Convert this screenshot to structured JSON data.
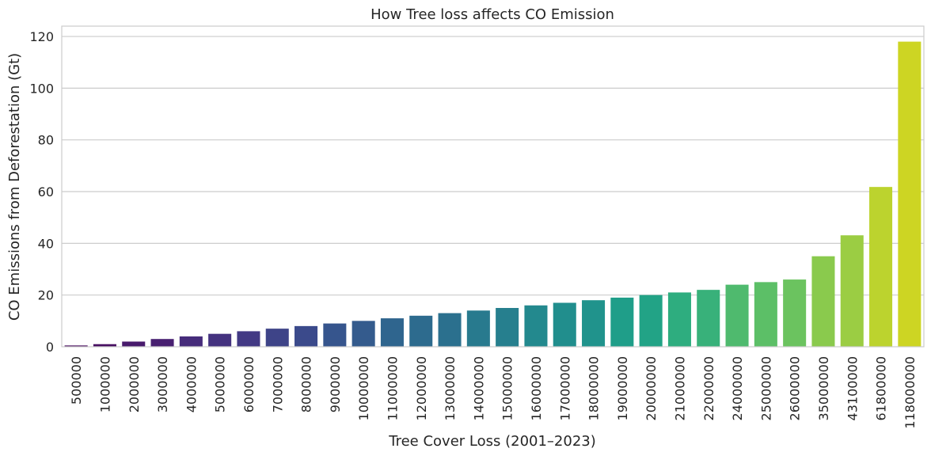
{
  "chart_data": {
    "type": "bar",
    "title": "How Tree loss affects CO\u0002 Emission",
    "xlabel": "Tree Cover Loss (2001–2023)",
    "ylabel": "CO\u0002 Emissions from Deforestation (Gt)",
    "ylim": [
      0,
      124
    ],
    "yticks": [
      0,
      20,
      40,
      60,
      80,
      100,
      120
    ],
    "grid": "horizontal",
    "palette": "viridis",
    "colors": [
      "#46085c",
      "#470e61",
      "#471365",
      "#481a6c",
      "#482071",
      "#472777",
      "#462c7b",
      "#44327f",
      "#423984",
      "#403e86",
      "#3e4488",
      "#3b4a8b",
      "#38508c",
      "#36558d",
      "#345b8d",
      "#31608e",
      "#2f658e",
      "#2d6b8e",
      "#2b708e",
      "#2a758e",
      "#287a8e",
      "#267f8e",
      "#25848d",
      "#23898e",
      "#218e8d",
      "#20938c",
      "#1f988b",
      "#1f9e89",
      "#22a386",
      "#27a884",
      "#2ead7f",
      "#38b17a",
      "#42b675",
      "#4fba6e",
      "#5cbf67",
      "#6bc35f",
      "#7ac656",
      "#8aca4d",
      "#9bcd43",
      "#aad038",
      "#bcd32e",
      "#cdd523"
    ],
    "categories": [
      "500000",
      "1000000",
      "2000000",
      "3000000",
      "4000000",
      "5000000",
      "6000000",
      "7000000",
      "8000000",
      "9000000",
      "10000000",
      "11000000",
      "12000000",
      "13000000",
      "14000000",
      "15000000",
      "16000000",
      "17000000",
      "18000000",
      "19000000",
      "20000000",
      "21000000",
      "22000000",
      "24000000",
      "25000000",
      "26000000",
      "35000000",
      "43100000",
      "61800000",
      "118000000"
    ],
    "values": [
      0.5,
      1,
      2,
      3,
      4,
      5,
      6,
      7,
      8,
      9,
      10,
      11,
      12,
      13,
      14,
      15,
      16,
      17,
      18,
      19,
      20,
      21,
      22,
      24,
      25,
      26,
      35,
      43.1,
      61.8,
      118
    ]
  }
}
